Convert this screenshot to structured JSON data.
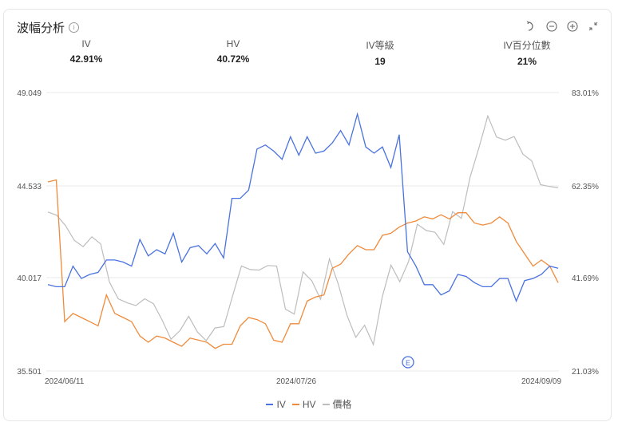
{
  "header": {
    "title": "波幅分析",
    "info_icon": "info-icon",
    "tools": [
      {
        "name": "reset-icon",
        "glyph": "↺"
      },
      {
        "name": "zoom-out-icon",
        "glyph": "⊖"
      },
      {
        "name": "zoom-in-icon",
        "glyph": "⊕"
      },
      {
        "name": "collapse-icon",
        "glyph": "⤡"
      }
    ]
  },
  "stats": [
    {
      "label": "IV",
      "value": "42.91%"
    },
    {
      "label": "HV",
      "value": "40.72%"
    },
    {
      "label": "IV等級",
      "value": "19"
    },
    {
      "label": "IV百分位數",
      "value": "21%"
    }
  ],
  "legend": [
    {
      "label": "IV",
      "color": "#4a72e0"
    },
    {
      "label": "HV",
      "color": "#f08a3a"
    },
    {
      "label": "價格",
      "color": "#bdbdbd"
    }
  ],
  "marker": {
    "label": "E",
    "color": "#4a72e0"
  },
  "chart_data": {
    "type": "line",
    "title": "波幅分析",
    "xlabel": "",
    "ylabel_left": "",
    "ylabel_right": "",
    "x_ticks": [
      "2024/06/11",
      "2024/07/26",
      "2024/09/09"
    ],
    "y_left_ticks": [
      "49.049",
      "44.533",
      "40.017",
      "35.501"
    ],
    "y_right_ticks": [
      "83.01%",
      "62.35%",
      "41.69%",
      "21.03%"
    ],
    "ylim_left": [
      35.501,
      49.049
    ],
    "ylim_right": [
      21.03,
      83.01
    ],
    "grid": true,
    "legend_position": "bottom",
    "series": [
      {
        "name": "IV",
        "color": "#4a72e0",
        "axis": "left",
        "values": [
          39.7,
          39.6,
          39.6,
          40.6,
          40.0,
          40.2,
          40.3,
          40.9,
          40.9,
          40.8,
          40.6,
          41.9,
          41.1,
          41.4,
          41.2,
          42.2,
          40.8,
          41.5,
          41.6,
          41.2,
          41.7,
          41.0,
          43.9,
          43.9,
          44.3,
          46.3,
          46.5,
          46.2,
          45.8,
          46.9,
          46.0,
          46.9,
          46.1,
          46.2,
          46.6,
          47.2,
          46.5,
          48.0,
          46.4,
          46.1,
          46.4,
          45.4,
          47.0,
          41.3,
          40.6,
          39.7,
          39.7,
          39.2,
          39.4,
          40.2,
          40.1,
          39.8,
          39.6,
          39.6,
          40.0,
          40.0,
          38.9,
          39.9,
          40.0,
          40.2,
          40.6,
          40.5
        ]
      },
      {
        "name": "HV",
        "color": "#f08a3a",
        "axis": "left",
        "values": [
          44.7,
          44.8,
          37.9,
          38.3,
          38.1,
          37.9,
          37.7,
          39.2,
          38.3,
          38.1,
          37.9,
          37.2,
          36.9,
          37.2,
          37.1,
          36.9,
          36.7,
          37.1,
          37.0,
          36.9,
          36.6,
          36.8,
          36.8,
          37.7,
          38.1,
          38.0,
          37.8,
          37.0,
          36.9,
          37.8,
          37.8,
          38.9,
          39.1,
          39.2,
          40.5,
          40.7,
          41.2,
          41.6,
          41.4,
          41.4,
          42.1,
          42.2,
          42.5,
          42.7,
          42.8,
          43.0,
          42.9,
          43.1,
          42.9,
          43.2,
          43.2,
          42.7,
          42.6,
          42.7,
          43.0,
          42.7,
          41.8,
          41.2,
          40.6,
          40.9,
          40.6,
          39.8
        ]
      },
      {
        "name": "價格",
        "color": "#bdbdbd",
        "axis": "right",
        "values": [
          56.4,
          55.7,
          53.4,
          50.1,
          48.7,
          50.9,
          49.3,
          40.8,
          37.1,
          36.2,
          35.6,
          37.1,
          36.0,
          32.3,
          28.1,
          30.0,
          33.2,
          29.7,
          27.8,
          30.6,
          30.9,
          37.8,
          44.4,
          43.6,
          43.5,
          44.5,
          44.4,
          34.8,
          33.7,
          43.1,
          41.1,
          37.0,
          46.0,
          40.4,
          33.4,
          28.5,
          31.2,
          26.9,
          37.5,
          44.6,
          40.9,
          45.4,
          53.7,
          52.3,
          51.9,
          49.2,
          56.5,
          55.0,
          64.2,
          70.7,
          77.8,
          73.1,
          72.4,
          73.2,
          69.3,
          67.8,
          62.5,
          62.1,
          61.8
        ]
      }
    ]
  }
}
